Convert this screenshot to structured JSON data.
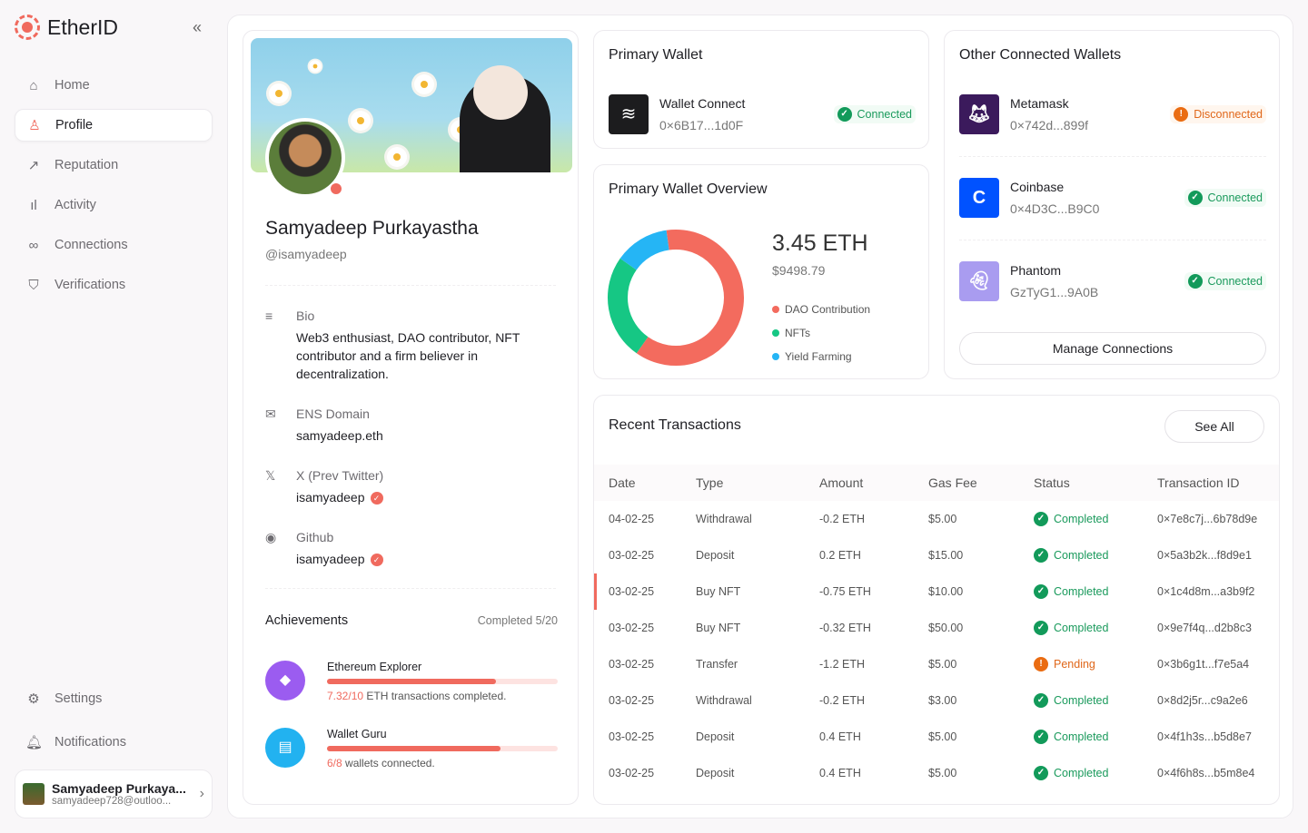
{
  "app": {
    "name": "EtherID",
    "collapse_icon": "double-chevron-left"
  },
  "sidebar": {
    "items": [
      {
        "label": "Home",
        "icon": "home"
      },
      {
        "label": "Profile",
        "icon": "user"
      },
      {
        "label": "Reputation",
        "icon": "trending-up"
      },
      {
        "label": "Activity",
        "icon": "bar-chart"
      },
      {
        "label": "Connections",
        "icon": "link"
      },
      {
        "label": "Verifications",
        "icon": "shield-check"
      }
    ],
    "bottom": [
      {
        "label": "Settings",
        "icon": "gear"
      },
      {
        "label": "Notifications",
        "icon": "bell"
      }
    ],
    "user": {
      "name": "Samyadeep Purkaya...",
      "email": "samyadeep728@outloo..."
    }
  },
  "profile": {
    "name": "Samyadeep Purkayastha",
    "handle": "@isamyadeep",
    "bio_label": "Bio",
    "bio": "Web3 enthusiast, DAO contributor, NFT contributor and a firm believer in decentralization.",
    "ens_label": "ENS Domain",
    "ens": "samyadeep.eth",
    "x_label": "X (Prev Twitter)",
    "x": "isamyadeep",
    "github_label": "Github",
    "github": "isamyadeep",
    "achievements_title": "Achievements",
    "achievements_completed": "Completed 5/20",
    "achievements": [
      {
        "title": "Ethereum Explorer",
        "progress_text": "7.32/10",
        "desc": " ETH transactions completed.",
        "progress": 0.732,
        "color": "#9b5cf0"
      },
      {
        "title": "Wallet Guru",
        "progress_text": "6/8",
        "desc": " wallets connected.",
        "progress": 0.75,
        "color": "#22b2f0"
      }
    ]
  },
  "primary_wallet": {
    "title": "Primary Wallet",
    "name": "Wallet Connect",
    "address": "0×6B17...1d0F",
    "status": "Connected"
  },
  "overview": {
    "title": "Primary Wallet Overview",
    "eth": "3.45 ETH",
    "usd": "$9498.79",
    "chart_data": {
      "type": "pie",
      "labels": [
        "DAO Contribution",
        "NFTs",
        "Yield Farming"
      ],
      "values": [
        62,
        25,
        13
      ],
      "colors": [
        "#f36b5e",
        "#16c784",
        "#25b5f5"
      ]
    }
  },
  "other_wallets": {
    "title": "Other Connected Wallets",
    "manage_label": "Manage Connections",
    "items": [
      {
        "name": "Metamask",
        "address": "0×742d...899f",
        "status": "Disconnected",
        "ok": false,
        "color": "#3b1a5c"
      },
      {
        "name": "Coinbase",
        "address": "0×4D3C...B9C0",
        "status": "Connected",
        "ok": true,
        "color": "#0052ff"
      },
      {
        "name": "Phantom",
        "address": "GzTyG1...9A0B",
        "status": "Connected",
        "ok": true,
        "color": "#a99cf0"
      }
    ]
  },
  "transactions": {
    "title": "Recent Transactions",
    "see_all": "See All",
    "columns": [
      "Date",
      "Type",
      "Amount",
      "Gas Fee",
      "Status",
      "Transaction ID"
    ],
    "rows": [
      [
        "04-02-25",
        "Withdrawal",
        "-0.2 ETH",
        "$5.00",
        "Completed",
        "0×7e8c7j...6b78d9e"
      ],
      [
        "03-02-25",
        "Deposit",
        "0.2 ETH",
        "$15.00",
        "Completed",
        "0×5a3b2k...f8d9e1"
      ],
      [
        "03-02-25",
        "Buy NFT",
        "-0.75 ETH",
        "$10.00",
        "Completed",
        "0×1c4d8m...a3b9f2"
      ],
      [
        "03-02-25",
        "Buy NFT",
        "-0.32 ETH",
        "$50.00",
        "Completed",
        "0×9e7f4q...d2b8c3"
      ],
      [
        "03-02-25",
        "Transfer",
        "-1.2 ETH",
        "$5.00",
        "Pending",
        "0×3b6g1t...f7e5a4"
      ],
      [
        "03-02-25",
        "Withdrawal",
        "-0.2 ETH",
        "$3.00",
        "Completed",
        "0×8d2j5r...c9a2e6"
      ],
      [
        "03-02-25",
        "Deposit",
        "0.4 ETH",
        "$5.00",
        "Completed",
        "0×4f1h3s...b5d8e7"
      ],
      [
        "03-02-25",
        "Deposit",
        "0.4 ETH",
        "$5.00",
        "Completed",
        "0×4f6h8s...b5m8e4"
      ]
    ]
  }
}
